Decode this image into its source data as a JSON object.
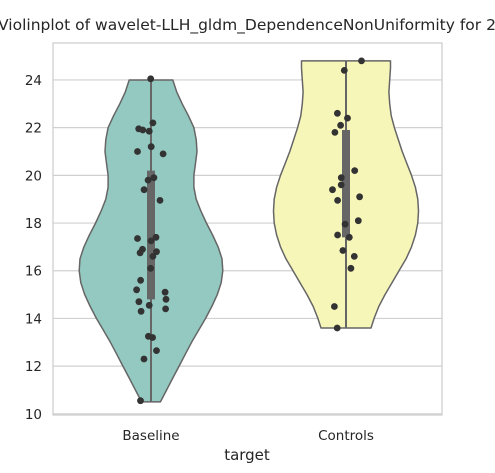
{
  "chart_data": {
    "type": "violin",
    "title": "Violinplot of wavelet-LLH_gldm_DependenceNonUniformity for 2",
    "xlabel": "target",
    "ylabel": "",
    "categories": [
      "Baseline",
      "Controls"
    ],
    "ylim": [
      9.95,
      25.55
    ],
    "yticks": [
      10,
      12,
      14,
      16,
      18,
      20,
      22,
      24
    ],
    "grid": "horizontal",
    "colors": {
      "Baseline": "#93c9c0",
      "Controls": "#f7f6b9",
      "outline": "#666666",
      "points": "#333333",
      "grid": "#d0d0d0"
    },
    "series": [
      {
        "category": "Baseline",
        "range": [
          10.5,
          24.0
        ],
        "quartiles": [
          14.8,
          17.0,
          20.2
        ],
        "density": [
          [
            10.5,
            0.12
          ],
          [
            11.0,
            0.2
          ],
          [
            11.5,
            0.28
          ],
          [
            12.0,
            0.36
          ],
          [
            12.5,
            0.44
          ],
          [
            13.0,
            0.52
          ],
          [
            13.5,
            0.61
          ],
          [
            14.0,
            0.7
          ],
          [
            14.5,
            0.78
          ],
          [
            15.0,
            0.85
          ],
          [
            15.5,
            0.9
          ],
          [
            16.0,
            0.92
          ],
          [
            16.5,
            0.91
          ],
          [
            17.0,
            0.86
          ],
          [
            17.5,
            0.79
          ],
          [
            18.0,
            0.71
          ],
          [
            18.5,
            0.64
          ],
          [
            19.0,
            0.58
          ],
          [
            19.5,
            0.55
          ],
          [
            20.0,
            0.55
          ],
          [
            20.5,
            0.57
          ],
          [
            21.0,
            0.59
          ],
          [
            21.5,
            0.58
          ],
          [
            22.0,
            0.55
          ],
          [
            22.5,
            0.48
          ],
          [
            23.0,
            0.4
          ],
          [
            23.5,
            0.33
          ],
          [
            24.0,
            0.28
          ]
        ],
        "points": [
          24.05,
          22.2,
          21.95,
          21.9,
          21.85,
          21.2,
          21.0,
          20.9,
          19.9,
          19.8,
          19.4,
          18.95,
          17.4,
          17.35,
          17.25,
          16.9,
          16.8,
          16.75,
          16.6,
          16.1,
          15.6,
          15.2,
          15.1,
          14.8,
          14.7,
          14.55,
          14.4,
          14.3,
          13.25,
          13.2,
          12.65,
          12.3,
          10.55
        ]
      },
      {
        "category": "Controls",
        "range": [
          13.6,
          24.8
        ],
        "quartiles": [
          17.4,
          19.4,
          21.9
        ],
        "density": [
          [
            13.6,
            0.32
          ],
          [
            14.0,
            0.36
          ],
          [
            14.5,
            0.42
          ],
          [
            15.0,
            0.5
          ],
          [
            15.5,
            0.59
          ],
          [
            16.0,
            0.68
          ],
          [
            16.5,
            0.77
          ],
          [
            17.0,
            0.84
          ],
          [
            17.5,
            0.89
          ],
          [
            18.0,
            0.92
          ],
          [
            18.5,
            0.93
          ],
          [
            19.0,
            0.92
          ],
          [
            19.5,
            0.89
          ],
          [
            20.0,
            0.84
          ],
          [
            20.5,
            0.78
          ],
          [
            21.0,
            0.72
          ],
          [
            21.5,
            0.67
          ],
          [
            22.0,
            0.62
          ],
          [
            22.5,
            0.58
          ],
          [
            23.0,
            0.56
          ],
          [
            23.5,
            0.55
          ],
          [
            24.0,
            0.56
          ],
          [
            24.5,
            0.57
          ],
          [
            24.8,
            0.57
          ]
        ],
        "points": [
          24.8,
          24.4,
          22.6,
          22.4,
          22.1,
          21.8,
          20.2,
          19.9,
          19.6,
          19.4,
          19.1,
          18.95,
          18.1,
          17.95,
          17.5,
          17.4,
          16.85,
          16.6,
          16.1,
          14.5,
          13.6
        ]
      }
    ]
  }
}
